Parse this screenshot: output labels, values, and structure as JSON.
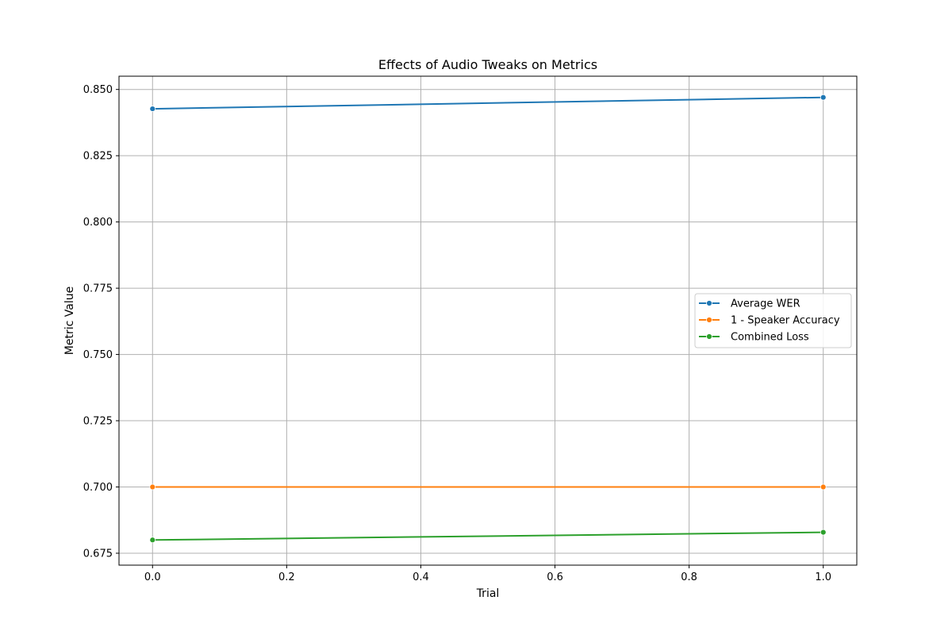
{
  "chart_data": {
    "type": "line",
    "title": "Effects of Audio Tweaks on Metrics",
    "xlabel": "Trial",
    "ylabel": "Metric Value",
    "x": [
      0.0,
      1.0
    ],
    "xlim": [
      -0.05,
      1.05
    ],
    "ylim": [
      0.6705,
      0.855
    ],
    "xticks": [
      0.0,
      0.2,
      0.4,
      0.6,
      0.8,
      1.0
    ],
    "xtick_labels": [
      "0.0",
      "0.2",
      "0.4",
      "0.6",
      "0.8",
      "1.0"
    ],
    "yticks": [
      0.675,
      0.7,
      0.725,
      0.75,
      0.775,
      0.8,
      0.825,
      0.85
    ],
    "ytick_labels": [
      "0.675",
      "0.700",
      "0.725",
      "0.750",
      "0.775",
      "0.800",
      "0.825",
      "0.850"
    ],
    "grid": true,
    "legend_position": "center-right",
    "series": [
      {
        "name": "Average WER",
        "color": "#1f77b4",
        "values": [
          0.8427,
          0.847
        ]
      },
      {
        "name": "1 - Speaker Accuracy",
        "color": "#ff7f0e",
        "values": [
          0.7,
          0.7
        ]
      },
      {
        "name": "Combined Loss",
        "color": "#2ca02c",
        "values": [
          0.68,
          0.6829
        ]
      }
    ]
  }
}
